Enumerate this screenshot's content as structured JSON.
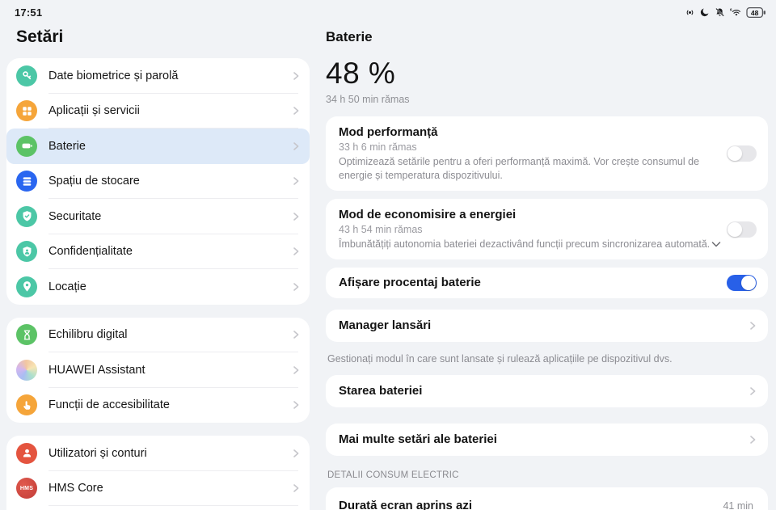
{
  "colors": {
    "accent": "#2860e8",
    "selected_row_bg": "#dde9f8",
    "teal": "#4cc7a6",
    "orange": "#f5a53a",
    "green": "#5cc366",
    "blue": "#2a66f0",
    "red": "#e4543f",
    "hms_red": "#c84039"
  },
  "statusbar": {
    "time": "17:51",
    "battery_percent": "48",
    "icons": [
      "vibrate-icon",
      "moon-icon",
      "bell-off-icon",
      "wifi6-icon",
      "battery-status-icon"
    ]
  },
  "sidebar": {
    "title": "Setări",
    "groups": [
      {
        "items": [
          {
            "label": "Date biometrice și parolă",
            "icon": "key-icon",
            "color": "#4cc7a6"
          },
          {
            "label": "Aplicații și servicii",
            "icon": "apps-grid-icon",
            "color": "#f5a53a"
          },
          {
            "label": "Baterie",
            "icon": "battery-icon",
            "color": "#5cc366",
            "selected": true
          },
          {
            "label": "Spațiu de stocare",
            "icon": "storage-icon",
            "color": "#2a66f0"
          },
          {
            "label": "Securitate",
            "icon": "shield-check-icon",
            "color": "#4cc7a6"
          },
          {
            "label": "Confidențialitate",
            "icon": "shield-person-icon",
            "color": "#4cc7a6"
          },
          {
            "label": "Locație",
            "icon": "location-pin-icon",
            "color": "#4cc7a6"
          }
        ]
      },
      {
        "items": [
          {
            "label": "Echilibru digital",
            "icon": "hourglass-icon",
            "color": "#5cc366"
          },
          {
            "label": "HUAWEI Assistant",
            "icon": "assistant-icon",
            "color": "gradient"
          },
          {
            "label": "Funcții de accesibilitate",
            "icon": "accessibility-hand-icon",
            "color": "#f5a53a"
          }
        ]
      },
      {
        "items": [
          {
            "label": "Utilizatori și conturi",
            "icon": "user-icon",
            "color": "#e4543f"
          },
          {
            "label": "HMS Core",
            "icon": "hms-icon",
            "color": "#c84039"
          }
        ],
        "cut": true
      }
    ]
  },
  "content": {
    "title": "Baterie",
    "hero": {
      "percent": "48 %",
      "remaining": "34 h 50 min rămas"
    },
    "sections": [
      {
        "type": "toggle",
        "title": "Mod performanță",
        "subtitle": "33 h 6 min rămas",
        "description": "Optimizează setările pentru a oferi performanță maximă. Vor crește consumul de energie și temperatura dispozitivului.",
        "toggle_on": false
      },
      {
        "type": "toggle",
        "title": "Mod de economisire a energiei",
        "subtitle": "43 h 54 min rămas",
        "description": "Îmbunătățiți autonomia bateriei dezactivând funcții precum sincronizarea automată.",
        "toggle_on": false,
        "expander": true
      },
      {
        "type": "toggle",
        "title": "Afișare procentaj baterie",
        "toggle_on": true
      },
      {
        "type": "link",
        "title": "Manager lansări",
        "spaced": true
      },
      {
        "type": "caption",
        "text": "Gestionați modul în care sunt lansate și rulează aplicațiile pe dispozitivul dvs."
      },
      {
        "type": "link",
        "title": "Starea bateriei"
      },
      {
        "type": "link",
        "title": "Mai multe setări ale bateriei",
        "tall_gap": true
      },
      {
        "type": "section-header",
        "text": "DETALII CONSUM ELECTRIC"
      },
      {
        "type": "value",
        "title": "Durată ecran aprins azi",
        "value": "41 min"
      }
    ]
  }
}
